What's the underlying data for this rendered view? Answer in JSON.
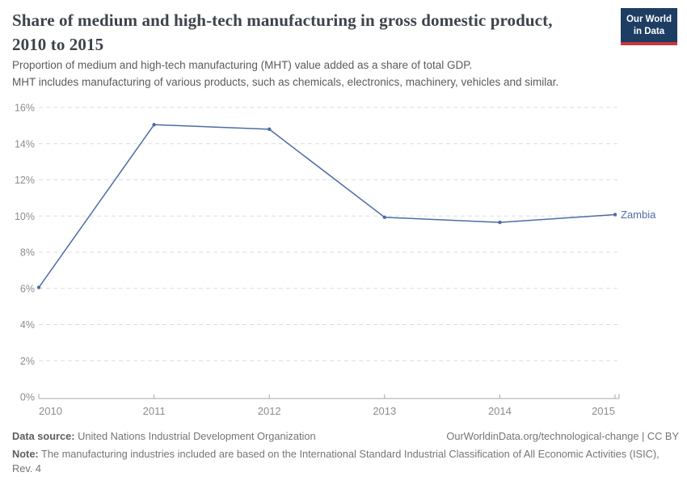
{
  "header": {
    "title": "Share of medium and high-tech manufacturing in gross domestic product, 2010 to 2015",
    "subtitle_line1": "Proportion of medium and high-tech manufacturing (MHT) value added as a share of total GDP.",
    "subtitle_line2": "MHT includes manufacturing of various products, such as chemicals, electronics, machinery, vehicles and similar.",
    "logo": {
      "line1": "Our World",
      "line2": "in Data"
    }
  },
  "chart_data": {
    "type": "line",
    "title": "Share of medium and high-tech manufacturing in gross domestic product, 2010 to 2015",
    "categories": [
      2010,
      2011,
      2012,
      2013,
      2014,
      2015
    ],
    "series": [
      {
        "name": "Zambia",
        "values": [
          6.05,
          15.05,
          14.8,
          9.93,
          9.65,
          10.08
        ],
        "color": "#4D6CA7"
      }
    ],
    "xlabel": "",
    "ylabel": "",
    "ylim": [
      0,
      16
    ],
    "ytick_step": 2,
    "ytick_suffix": "%",
    "grid": true,
    "grid_style": "dashed",
    "legend_position": "end-of-line"
  },
  "footer": {
    "datasource_label": "Data source:",
    "datasource_value": "United Nations Industrial Development Organization",
    "link_text": "OurWorldinData.org/technological-change | CC BY",
    "note_label": "Note:",
    "note_value": "The manufacturing industries included are based on the International Standard Industrial Classification of All Economic Activities (ISIC), Rev. 4"
  },
  "colors": {
    "line": "#4D6CA7",
    "logo_bg": "#1d3d63",
    "logo_stripe": "#c5383b",
    "title_text": "#3d434b",
    "subtitle_text": "#5b5b5b",
    "grid": "#dedede",
    "axis": "#a8a8a8",
    "tick_label": "#8d8d8d"
  }
}
